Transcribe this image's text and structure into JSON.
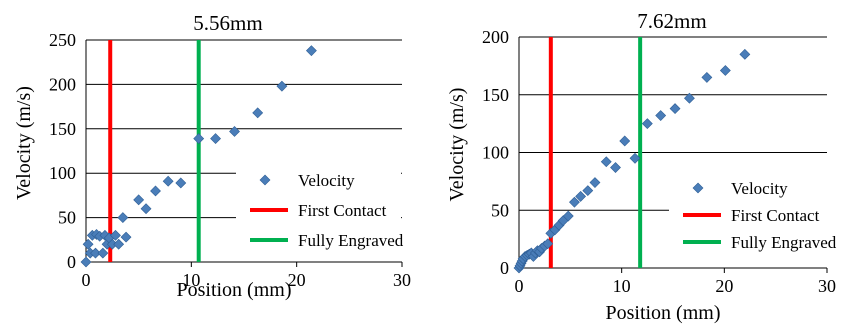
{
  "chart_data": [
    {
      "type": "scatter",
      "title": "5.56mm",
      "xlabel": "Position (mm)",
      "ylabel": "Velocity (m/s)",
      "xlim": [
        0,
        30
      ],
      "ylim": [
        0,
        250
      ],
      "x_ticks": [
        "0",
        "10",
        "20",
        "30"
      ],
      "y_ticks": [
        "0",
        "50",
        "100",
        "150",
        "200",
        "250"
      ],
      "grid": "horizontal",
      "legend_position": "right",
      "series": [
        {
          "name": "Velocity",
          "color": "#4a7db8",
          "marker": "diamond",
          "points": [
            [
              0.0,
              0
            ],
            [
              0.2,
              20
            ],
            [
              0.4,
              10
            ],
            [
              0.6,
              30
            ],
            [
              0.9,
              10
            ],
            [
              1.0,
              31
            ],
            [
              1.3,
              29
            ],
            [
              1.6,
              10
            ],
            [
              1.8,
              30
            ],
            [
              2.0,
              20
            ],
            [
              2.2,
              27
            ],
            [
              2.5,
              20
            ],
            [
              2.8,
              30
            ],
            [
              3.1,
              20
            ],
            [
              3.5,
              50
            ],
            [
              3.8,
              28
            ],
            [
              5.0,
              70
            ],
            [
              5.7,
              60
            ],
            [
              6.6,
              80
            ],
            [
              7.8,
              91
            ],
            [
              9.0,
              89
            ],
            [
              10.7,
              139
            ],
            [
              12.3,
              139
            ],
            [
              14.1,
              147
            ],
            [
              16.3,
              168
            ],
            [
              18.6,
              198
            ],
            [
              21.4,
              238
            ]
          ]
        }
      ],
      "vertical_lines": [
        {
          "name": "First Contact",
          "x": 2.3,
          "color": "#ff0000"
        },
        {
          "name": "Fully Engraved",
          "x": 10.7,
          "color": "#00b050"
        }
      ]
    },
    {
      "type": "scatter",
      "title": "7.62mm",
      "xlabel": "Position (mm)",
      "ylabel": "Velocity (m/s)",
      "xlim": [
        0,
        30
      ],
      "ylim": [
        0,
        200
      ],
      "x_ticks": [
        "0",
        "10",
        "20",
        "30"
      ],
      "y_ticks": [
        "0",
        "50",
        "100",
        "150",
        "200"
      ],
      "grid": "horizontal",
      "legend_position": "right",
      "series": [
        {
          "name": "Velocity",
          "color": "#4a7db8",
          "marker": "diamond",
          "points": [
            [
              0.0,
              0
            ],
            [
              0.1,
              2
            ],
            [
              0.2,
              4
            ],
            [
              0.3,
              6
            ],
            [
              0.4,
              8
            ],
            [
              0.6,
              10
            ],
            [
              0.8,
              11
            ],
            [
              1.0,
              12
            ],
            [
              1.2,
              13
            ],
            [
              1.4,
              10
            ],
            [
              1.6,
              13
            ],
            [
              1.8,
              15
            ],
            [
              2.0,
              14
            ],
            [
              2.2,
              17
            ],
            [
              2.5,
              19
            ],
            [
              2.8,
              21
            ],
            [
              3.1,
              30
            ],
            [
              3.5,
              33
            ],
            [
              3.9,
              37
            ],
            [
              4.3,
              41
            ],
            [
              4.8,
              45
            ],
            [
              5.4,
              57
            ],
            [
              6.0,
              62
            ],
            [
              6.7,
              67
            ],
            [
              7.4,
              74
            ],
            [
              8.5,
              92
            ],
            [
              9.4,
              87
            ],
            [
              10.3,
              110
            ],
            [
              11.3,
              95
            ],
            [
              12.5,
              125
            ],
            [
              13.8,
              132
            ],
            [
              15.2,
              138
            ],
            [
              16.6,
              147
            ],
            [
              18.3,
              165
            ],
            [
              20.1,
              171
            ],
            [
              22.0,
              185
            ]
          ]
        }
      ],
      "vertical_lines": [
        {
          "name": "First Contact",
          "x": 3.1,
          "color": "#ff0000"
        },
        {
          "name": "Fully Engraved",
          "x": 11.8,
          "color": "#00b050"
        }
      ]
    }
  ]
}
